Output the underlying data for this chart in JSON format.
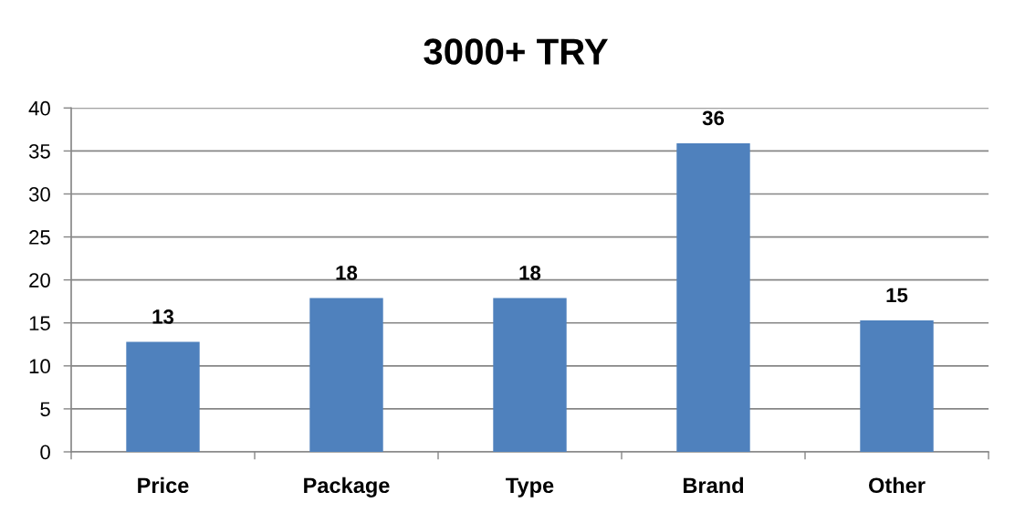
{
  "chart_data": {
    "type": "bar",
    "title": "3000+ TRY",
    "categories": [
      "Price",
      "Package",
      "Type",
      "Brand",
      "Other"
    ],
    "values": [
      12.8,
      17.9,
      17.9,
      35.9,
      15.3
    ],
    "value_labels": [
      "13",
      "18",
      "18",
      "36",
      "15"
    ],
    "color": "#4f81bd",
    "ylim": [
      0,
      40
    ],
    "yticks": [
      0,
      5,
      10,
      15,
      20,
      25,
      30,
      35,
      40
    ],
    "grid": "y"
  }
}
